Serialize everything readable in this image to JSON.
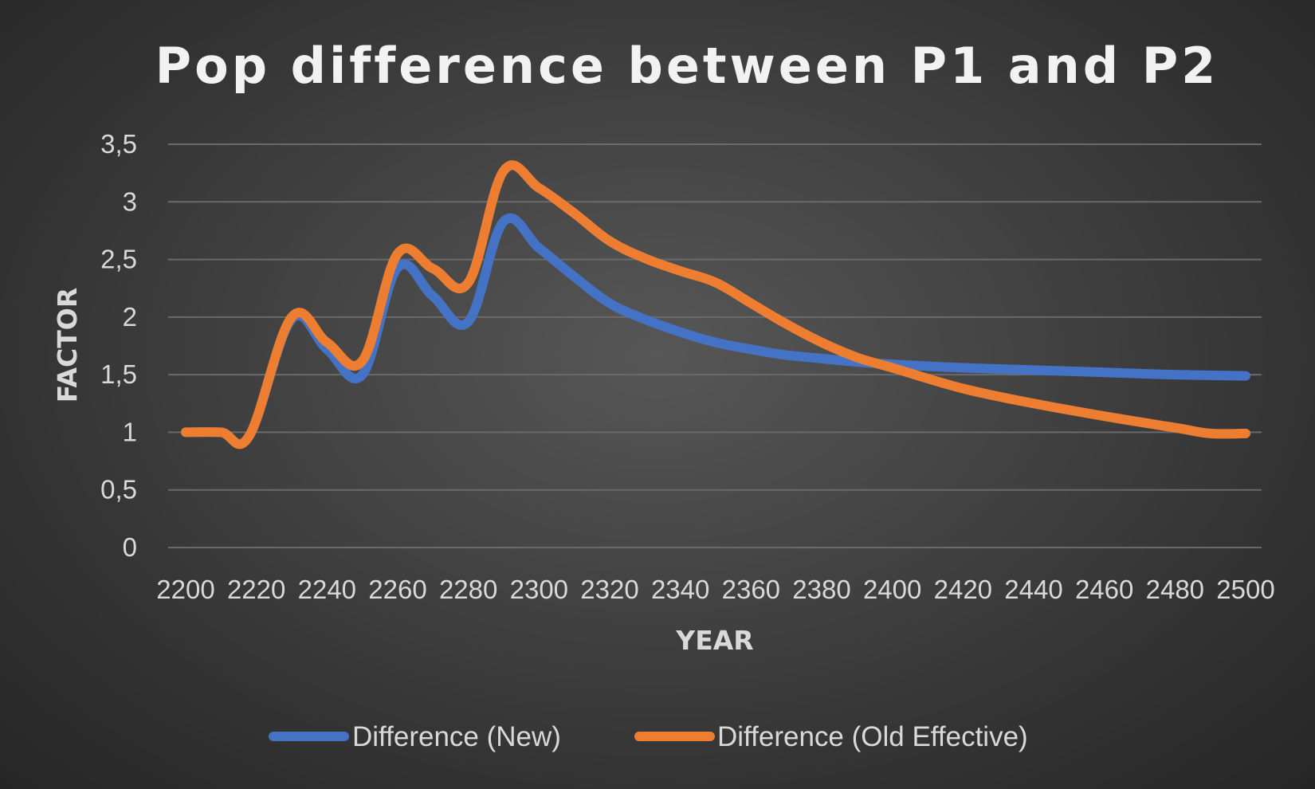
{
  "chart_data": {
    "type": "line",
    "title": "Pop difference between P1 and P2",
    "xlabel": "YEAR",
    "ylabel": "FACTOR",
    "xlim": [
      2200,
      2500
    ],
    "ylim": [
      0,
      3.5
    ],
    "x_ticks": [
      "2200",
      "2220",
      "2240",
      "2260",
      "2280",
      "2300",
      "2320",
      "2340",
      "2360",
      "2380",
      "2400",
      "2420",
      "2440",
      "2460",
      "2480",
      "2500"
    ],
    "y_ticks": [
      "0",
      "0,5",
      "1",
      "1,5",
      "2",
      "2,5",
      "3",
      "3,5"
    ],
    "grid": true,
    "legend_position": "bottom",
    "series": [
      {
        "name": "Difference (New)",
        "color": "#4472c4",
        "x": [
          2200,
          2210,
          2218,
          2230,
          2240,
          2250,
          2260,
          2270,
          2280,
          2290,
          2300,
          2310,
          2320,
          2330,
          2340,
          2350,
          2360,
          2370,
          2380,
          2390,
          2400,
          2420,
          2440,
          2460,
          2480,
          2500
        ],
        "y": [
          1.0,
          1.0,
          0.97,
          1.98,
          1.72,
          1.5,
          2.43,
          2.18,
          1.96,
          2.83,
          2.6,
          2.35,
          2.12,
          1.98,
          1.87,
          1.78,
          1.72,
          1.67,
          1.64,
          1.61,
          1.59,
          1.56,
          1.54,
          1.52,
          1.5,
          1.49
        ]
      },
      {
        "name": "Difference (Old Effective)",
        "color": "#ed7d31",
        "x": [
          2200,
          2210,
          2218,
          2230,
          2240,
          2250,
          2260,
          2270,
          2280,
          2290,
          2300,
          2310,
          2320,
          2330,
          2340,
          2350,
          2360,
          2370,
          2380,
          2390,
          2400,
          2420,
          2440,
          2460,
          2480,
          2490,
          2500
        ],
        "y": [
          1.0,
          1.0,
          0.97,
          2.0,
          1.78,
          1.62,
          2.55,
          2.42,
          2.3,
          3.27,
          3.12,
          2.9,
          2.66,
          2.51,
          2.4,
          2.3,
          2.12,
          1.94,
          1.78,
          1.65,
          1.56,
          1.38,
          1.25,
          1.14,
          1.04,
          0.99,
          0.99
        ]
      }
    ]
  }
}
